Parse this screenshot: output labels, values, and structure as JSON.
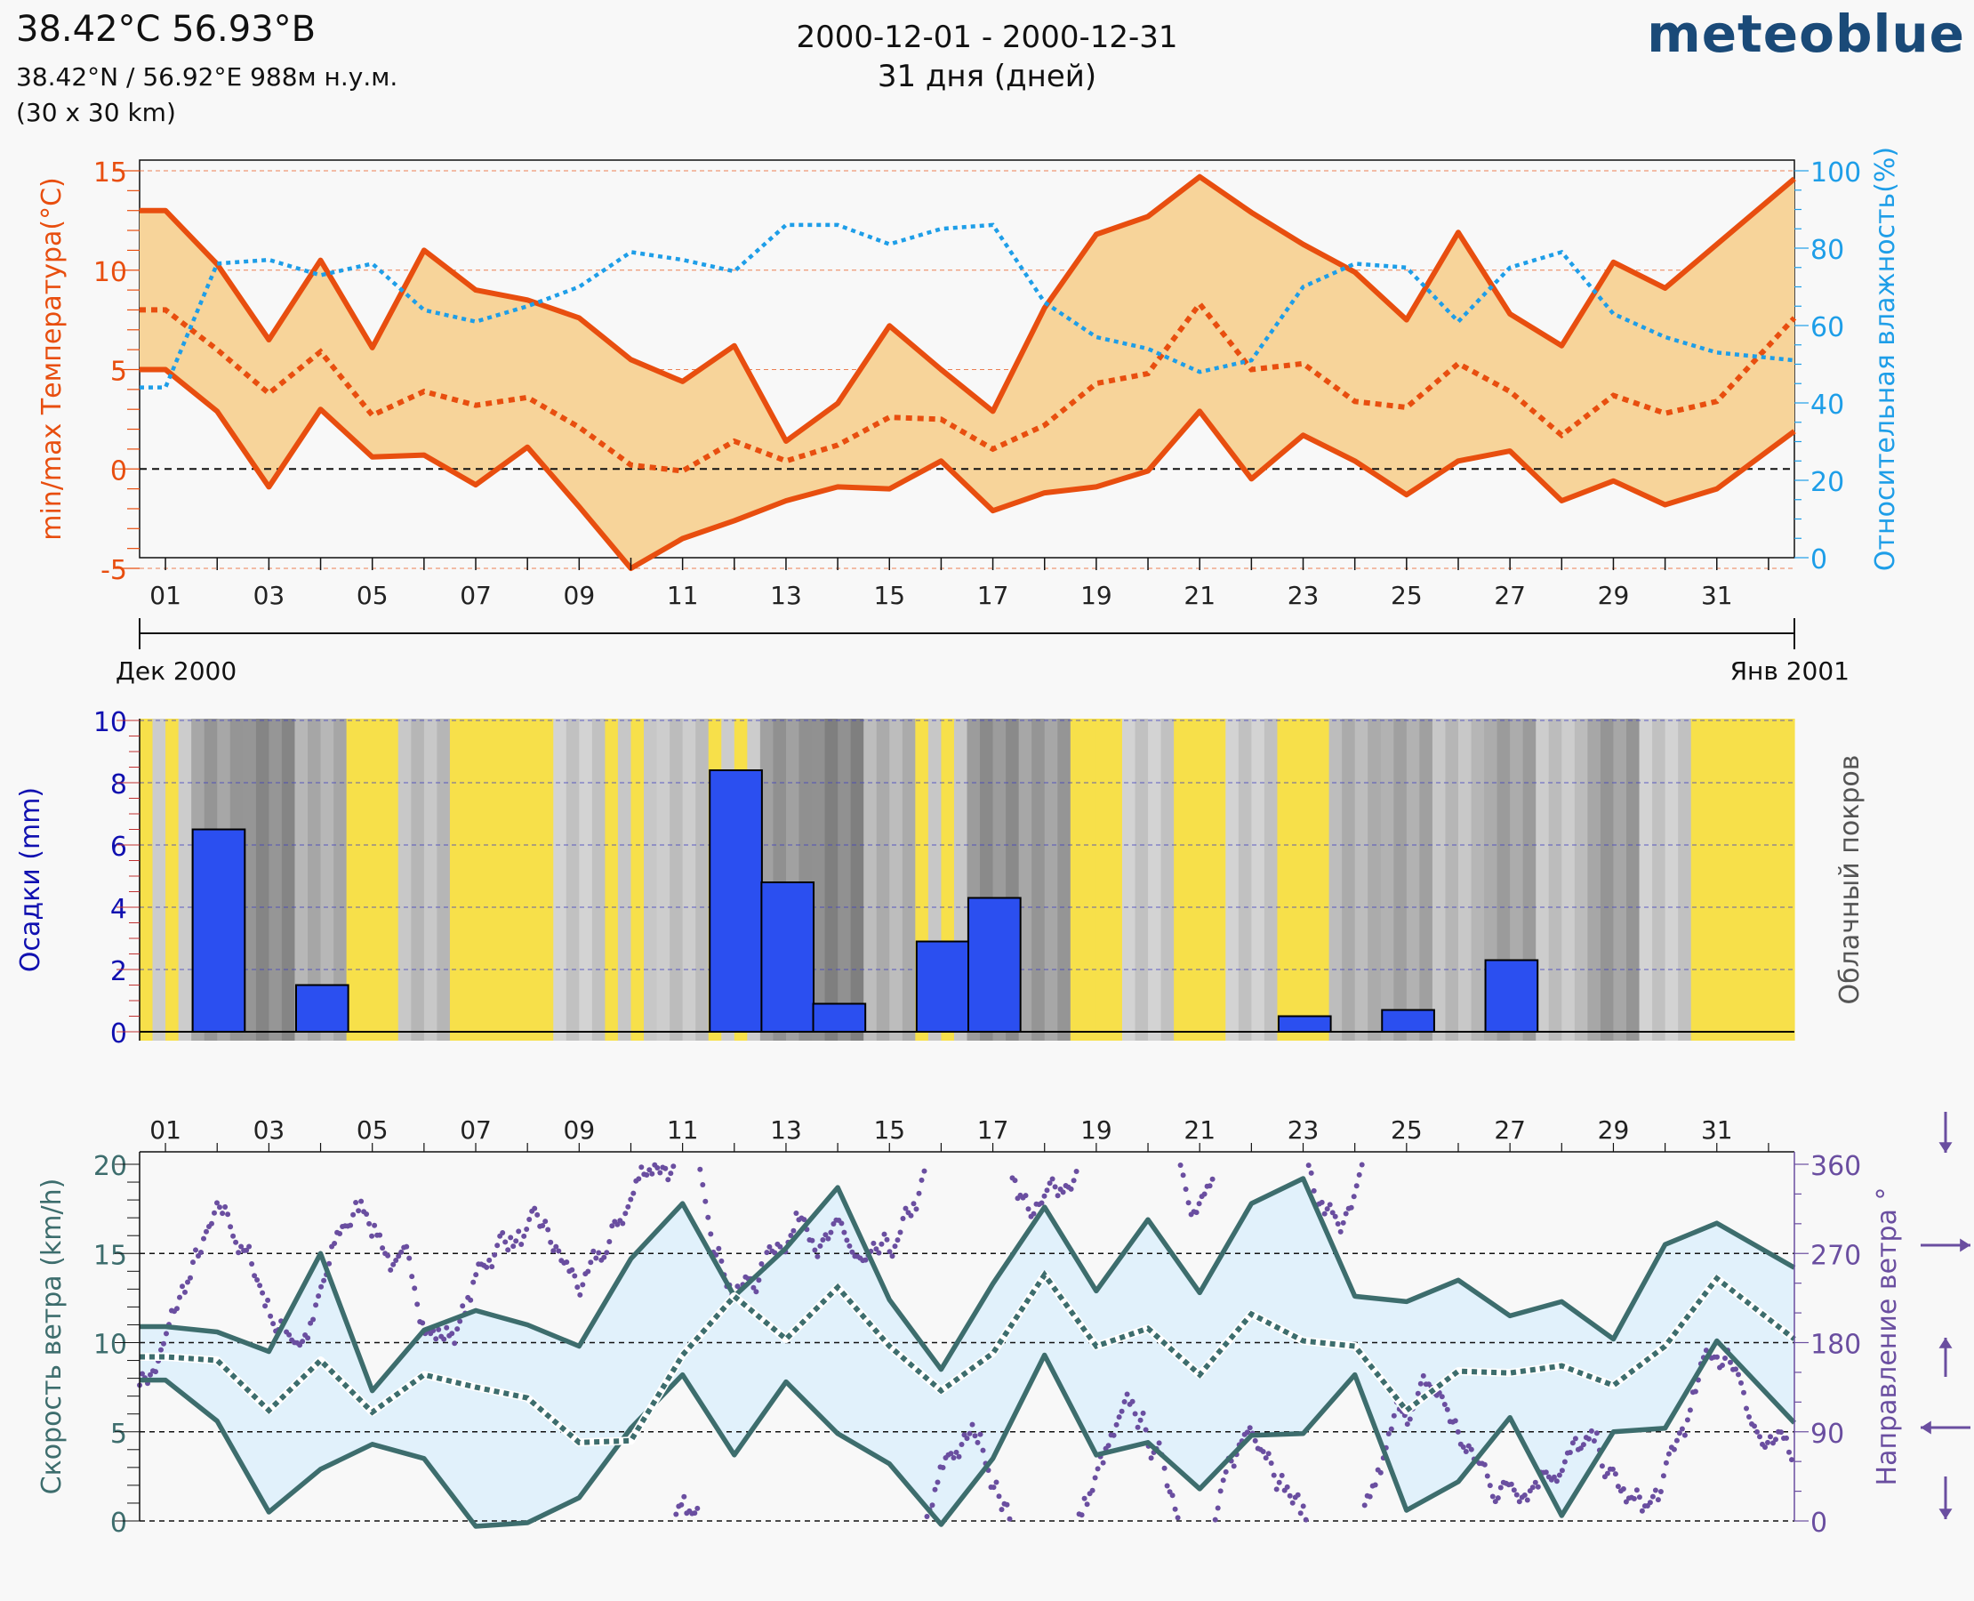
{
  "header": {
    "location": "38.42°C 56.93°B",
    "coords": "38.42°N / 56.92°E   988м н.у.м.",
    "resolution": "(30 x 30 km)",
    "date_range": "2000-12-01 - 2000-12-31",
    "days": "31 дня (дней)",
    "brand": "meteoblue"
  },
  "colors": {
    "temperature": "#e84e0f",
    "temp_fill": "#f7d49a",
    "humidity": "#1e9ee8",
    "precip": "#2b4ff0",
    "precip_axis": "#1010b0",
    "cloud_axis": "#555555",
    "sun": "#f7e04a",
    "wind": "#3d6d6d",
    "wind_fill": "#e1f1fb",
    "direction": "#6a4ea0"
  },
  "chart_data": [
    {
      "id": "temperature",
      "type": "line",
      "x": [
        0,
        1,
        2,
        3,
        4,
        5,
        6,
        7,
        8,
        9,
        10,
        11,
        12,
        13,
        14,
        15,
        16,
        17,
        18,
        19,
        20,
        21,
        22,
        23,
        24,
        25,
        26,
        27,
        28,
        29,
        30,
        31,
        32
      ],
      "x_tick_labels": [
        "01",
        "03",
        "05",
        "07",
        "09",
        "11",
        "13",
        "15",
        "17",
        "19",
        "21",
        "23",
        "25",
        "27",
        "29",
        "31"
      ],
      "x_tick_days": [
        1,
        3,
        5,
        7,
        9,
        11,
        13,
        15,
        17,
        19,
        21,
        23,
        25,
        27,
        29,
        31
      ],
      "month_labels": [
        "Дек 2000",
        "Янв 2001"
      ],
      "series": [
        {
          "name": "max",
          "values": [
            13.0,
            13.0,
            10.3,
            6.5,
            10.5,
            6.1,
            11.0,
            9.0,
            8.5,
            7.6,
            5.5,
            4.4,
            6.2,
            1.4,
            3.3,
            7.2,
            5.0,
            2.9,
            8.1,
            11.8,
            12.7,
            14.7,
            12.9,
            11.3,
            9.9,
            7.5,
            11.9,
            7.8,
            6.2,
            10.4,
            9.1,
            11.3,
            14.6
          ]
        },
        {
          "name": "mean",
          "values": [
            8.0,
            8.0,
            6.0,
            3.8,
            5.9,
            2.7,
            3.9,
            3.2,
            3.6,
            2.1,
            0.2,
            -0.1,
            1.4,
            0.4,
            1.2,
            2.6,
            2.5,
            1.0,
            2.2,
            4.3,
            4.8,
            8.3,
            5.0,
            5.3,
            3.4,
            3.1,
            5.3,
            3.9,
            1.7,
            3.7,
            2.8,
            3.4,
            7.6
          ]
        },
        {
          "name": "min",
          "values": [
            5.0,
            5.0,
            2.9,
            -0.9,
            3.0,
            0.6,
            0.7,
            -0.8,
            1.1,
            -1.9,
            -5.0,
            -3.5,
            -2.6,
            -1.6,
            -0.9,
            -1.0,
            0.4,
            -2.1,
            -1.2,
            -0.9,
            -0.1,
            2.9,
            -0.5,
            1.7,
            0.4,
            -1.3,
            0.4,
            0.9,
            -1.6,
            -0.6,
            -1.8,
            -1.0,
            1.9
          ]
        },
        {
          "name": "humidity",
          "axis": "right",
          "values": [
            44,
            44,
            76,
            77,
            73,
            76,
            64,
            61,
            65,
            70,
            79,
            77,
            74,
            86,
            86,
            81,
            85,
            86,
            66,
            57,
            54,
            48,
            51,
            70,
            76,
            75,
            61,
            75,
            79,
            63,
            57,
            53,
            51
          ]
        }
      ],
      "ylabel": "min/max Температура(°C)",
      "ylim": [
        -5,
        15
      ],
      "yticks": [
        -5,
        0,
        5,
        10,
        15
      ],
      "y2label": "Относительная влажность(%)",
      "y2lim": [
        0,
        100
      ],
      "y2ticks": [
        0,
        20,
        40,
        60,
        80,
        100
      ]
    },
    {
      "id": "precipitation",
      "type": "bar",
      "days": [
        2,
        4,
        12,
        13,
        14,
        16,
        17,
        23,
        25,
        27
      ],
      "values": [
        6.5,
        1.5,
        8.4,
        4.8,
        0.9,
        2.9,
        4.3,
        0.5,
        0.7,
        2.3
      ],
      "ylabel": "Осадки (mm)",
      "ylim": [
        0,
        10
      ],
      "yticks": [
        0,
        2,
        4,
        6,
        8,
        10
      ],
      "y2label": "Облачный покров",
      "cloud_cover_days": [
        0.2,
        0.7,
        0.85,
        0.55,
        0.1,
        0.4,
        0.05,
        0.05,
        0.3,
        0.25,
        0.35,
        0.2,
        0.75,
        0.9,
        0.5,
        0.25,
        0.8,
        0.7,
        0.1,
        0.3,
        0.15,
        0.3,
        0.05,
        0.5,
        0.6,
        0.4,
        0.65,
        0.35,
        0.7,
        0.3,
        0.15,
        0.1
      ]
    },
    {
      "id": "wind",
      "type": "line",
      "x_tick_labels": [
        "01",
        "03",
        "05",
        "07",
        "09",
        "11",
        "13",
        "15",
        "17",
        "19",
        "21",
        "23",
        "25",
        "27",
        "29",
        "31"
      ],
      "series": [
        {
          "name": "max",
          "values": [
            10.9,
            10.9,
            10.6,
            9.5,
            15.0,
            7.3,
            10.7,
            11.8,
            11.0,
            9.8,
            14.7,
            17.8,
            12.6,
            15.3,
            18.7,
            12.4,
            8.5,
            13.3,
            17.6,
            12.9,
            16.9,
            12.8,
            17.8,
            19.2,
            12.6,
            12.3,
            13.5,
            11.5,
            12.3,
            10.2,
            15.5,
            16.7,
            14.2
          ]
        },
        {
          "name": "mean",
          "values": [
            9.2,
            9.2,
            9.0,
            6.2,
            9.0,
            6.1,
            8.2,
            7.5,
            6.9,
            4.4,
            4.5,
            9.3,
            12.6,
            10.2,
            13.1,
            9.8,
            7.3,
            9.4,
            13.8,
            9.8,
            10.8,
            8.2,
            11.6,
            10.1,
            9.8,
            6.2,
            8.4,
            8.3,
            8.7,
            7.6,
            9.8,
            13.6,
            10.2
          ]
        },
        {
          "name": "min",
          "values": [
            7.9,
            7.9,
            5.6,
            0.5,
            2.9,
            4.3,
            3.5,
            -0.3,
            -0.1,
            1.3,
            5.2,
            8.2,
            3.7,
            7.8,
            4.9,
            3.2,
            -0.2,
            3.5,
            9.3,
            3.7,
            4.4,
            1.8,
            4.8,
            4.9,
            8.2,
            0.6,
            2.2,
            5.8,
            0.3,
            5.0,
            5.2,
            10.1,
            5.5
          ]
        },
        {
          "name": "direction",
          "axis": "right",
          "unit": "deg"
        }
      ],
      "ylabel": "Скорость ветра (km/h)",
      "ylim": [
        0,
        20
      ],
      "yticks": [
        0,
        5,
        10,
        15,
        20
      ],
      "y2label": "Направление ветра °",
      "y2lim": [
        0,
        360
      ],
      "y2ticks": [
        0,
        90,
        180,
        270,
        360
      ]
    }
  ]
}
